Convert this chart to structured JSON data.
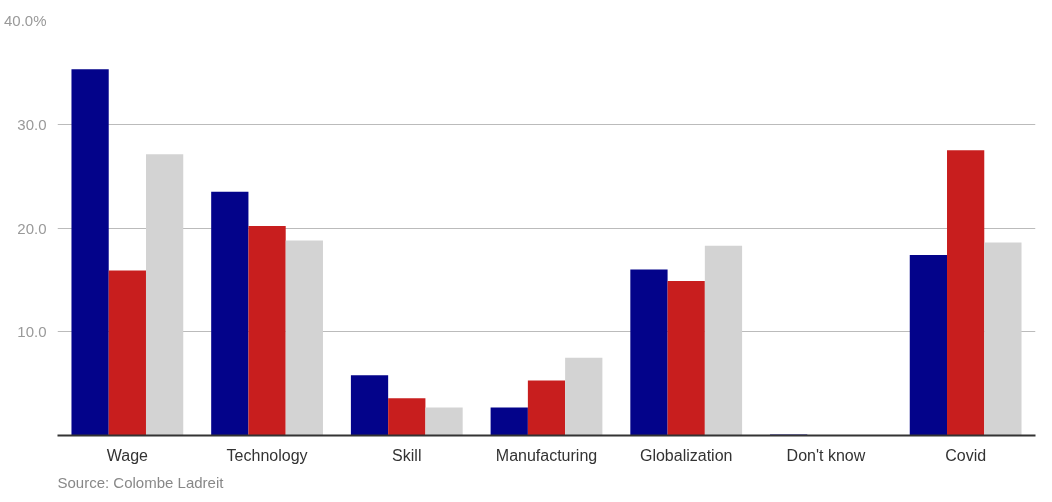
{
  "chart_data": {
    "type": "bar",
    "categories": [
      "Wage",
      "Technology",
      "Skill",
      "Manufacturing",
      "Globalization",
      "Don't know",
      "Covid"
    ],
    "series": [
      {
        "color": "#03038a",
        "values": [
          35.3,
          23.5,
          5.8,
          2.7,
          16.0,
          0.1,
          17.4
        ]
      },
      {
        "color": "#c81e1e",
        "values": [
          15.9,
          20.2,
          3.6,
          5.3,
          14.9,
          0,
          27.5
        ]
      },
      {
        "color": "#d3d3d3",
        "values": [
          27.1,
          18.8,
          2.7,
          7.5,
          18.3,
          0,
          18.6
        ]
      }
    ],
    "ylim": [
      0,
      40
    ],
    "yticks": [
      {
        "value": 10,
        "label": "10.0"
      },
      {
        "value": 20,
        "label": "20.0"
      },
      {
        "value": 30,
        "label": "30.0"
      },
      {
        "value": 40,
        "label": "40.0%"
      }
    ],
    "grid": "y",
    "annotations": [
      "Source: Colombe Ladreit"
    ]
  }
}
